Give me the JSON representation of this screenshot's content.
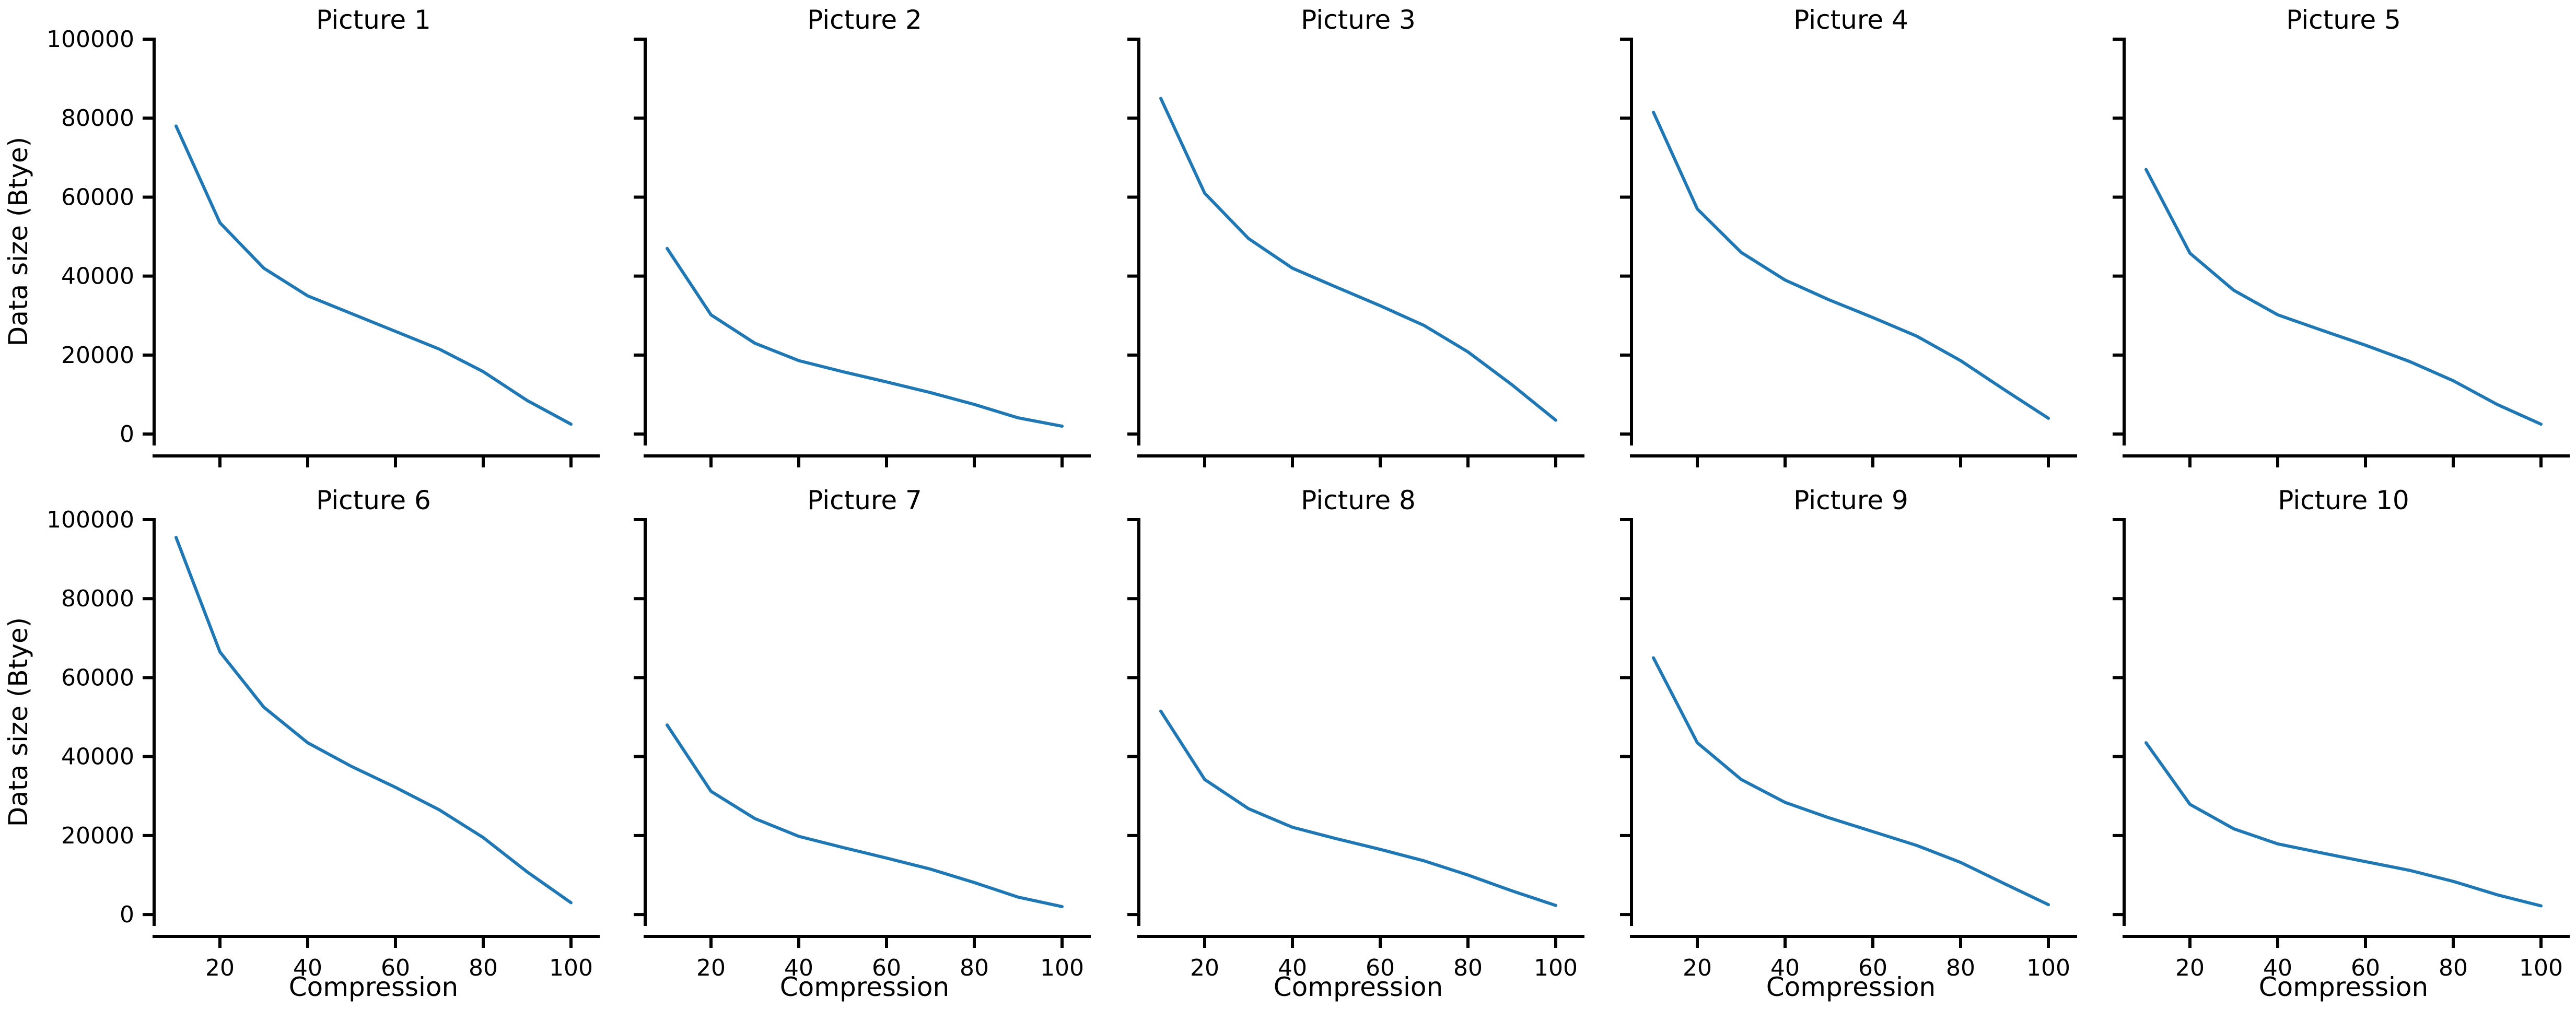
{
  "chart_data": [
    {
      "type": "line",
      "title": "Picture 1",
      "xlabel": "",
      "ylabel": "Data size (Btye)",
      "x": [
        10,
        20,
        30,
        40,
        50,
        60,
        70,
        80,
        90,
        100
      ],
      "values": [
        78000,
        53500,
        42000,
        35000,
        30500,
        26000,
        21500,
        15800,
        8500,
        2500
      ]
    },
    {
      "type": "line",
      "title": "Picture 2",
      "xlabel": "",
      "ylabel": "",
      "x": [
        10,
        20,
        30,
        40,
        50,
        60,
        70,
        80,
        90,
        100
      ],
      "values": [
        47000,
        30200,
        23000,
        18600,
        15800,
        13200,
        10500,
        7500,
        4100,
        2000
      ]
    },
    {
      "type": "line",
      "title": "Picture 3",
      "xlabel": "",
      "ylabel": "",
      "x": [
        10,
        20,
        30,
        40,
        50,
        60,
        70,
        80,
        90,
        100
      ],
      "values": [
        85000,
        61000,
        49500,
        42000,
        37200,
        32500,
        27500,
        20800,
        12500,
        3500
      ]
    },
    {
      "type": "line",
      "title": "Picture 4",
      "xlabel": "",
      "ylabel": "",
      "x": [
        10,
        20,
        30,
        40,
        50,
        60,
        70,
        80,
        90,
        100
      ],
      "values": [
        81500,
        57000,
        46000,
        39000,
        34000,
        29500,
        24800,
        18600,
        11200,
        4000
      ]
    },
    {
      "type": "line",
      "title": "Picture 5",
      "xlabel": "",
      "ylabel": "",
      "x": [
        10,
        20,
        30,
        40,
        50,
        60,
        70,
        80,
        90,
        100
      ],
      "values": [
        67000,
        45800,
        36400,
        30200,
        26300,
        22500,
        18400,
        13500,
        7500,
        2500
      ]
    },
    {
      "type": "line",
      "title": "Picture 6",
      "xlabel": "Compression",
      "ylabel": "Data size (Btye)",
      "x": [
        10,
        20,
        30,
        40,
        50,
        60,
        70,
        80,
        90,
        100
      ],
      "values": [
        95500,
        66500,
        52500,
        43500,
        37500,
        32200,
        26500,
        19500,
        10800,
        3000
      ]
    },
    {
      "type": "line",
      "title": "Picture 7",
      "xlabel": "Compression",
      "ylabel": "",
      "x": [
        10,
        20,
        30,
        40,
        50,
        60,
        70,
        80,
        90,
        100
      ],
      "values": [
        48000,
        31200,
        24300,
        19800,
        17000,
        14300,
        11500,
        8100,
        4400,
        2000
      ]
    },
    {
      "type": "line",
      "title": "Picture 8",
      "xlabel": "Compression",
      "ylabel": "",
      "x": [
        10,
        20,
        30,
        40,
        50,
        60,
        70,
        80,
        90,
        100
      ],
      "values": [
        51500,
        34200,
        26800,
        22100,
        19200,
        16500,
        13600,
        10000,
        6000,
        2300
      ]
    },
    {
      "type": "line",
      "title": "Picture 9",
      "xlabel": "Compression",
      "ylabel": "",
      "x": [
        10,
        20,
        30,
        40,
        50,
        60,
        70,
        80,
        90,
        100
      ],
      "values": [
        65000,
        43500,
        34200,
        28400,
        24500,
        21000,
        17500,
        13200,
        7800,
        2500
      ]
    },
    {
      "type": "line",
      "title": "Picture 10",
      "xlabel": "Compression",
      "ylabel": "",
      "x": [
        10,
        20,
        30,
        40,
        50,
        60,
        70,
        80,
        90,
        100
      ],
      "values": [
        43500,
        27900,
        21700,
        17900,
        15600,
        13400,
        11200,
        8400,
        5000,
        2200
      ]
    }
  ],
  "shared": {
    "xlim": [
      5,
      105
    ],
    "ylim": [
      -2500,
      100000
    ],
    "xticks": [
      20,
      40,
      60,
      80,
      100
    ],
    "yticks": [
      0,
      20000,
      40000,
      60000,
      80000,
      100000
    ],
    "grid": false,
    "line_color": "#1f77b4",
    "axis_color": "#000000",
    "y_tick_labels_on": "first-column",
    "x_tick_labels_on": "bottom-row"
  }
}
